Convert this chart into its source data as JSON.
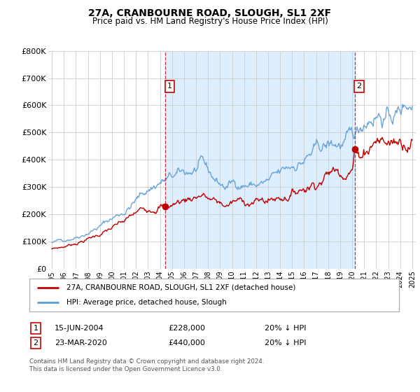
{
  "title": "27A, CRANBOURNE ROAD, SLOUGH, SL1 2XF",
  "subtitle": "Price paid vs. HM Land Registry's House Price Index (HPI)",
  "ylim": [
    0,
    800000
  ],
  "yticks": [
    0,
    100000,
    200000,
    300000,
    400000,
    500000,
    600000,
    700000,
    800000
  ],
  "ytick_labels": [
    "£0",
    "£100K",
    "£200K",
    "£300K",
    "£400K",
    "£500K",
    "£600K",
    "£700K",
    "£800K"
  ],
  "hpi_color": "#5b9bd5",
  "price_color": "#c00000",
  "fill_color": "#ddeeff",
  "marker1_x": 2004.46,
  "marker1_y": 228000,
  "marker2_x": 2020.23,
  "marker2_y": 440000,
  "annotation_box_color": "#cc0000",
  "legend_label_red": "27A, CRANBOURNE ROAD, SLOUGH, SL1 2XF (detached house)",
  "legend_label_blue": "HPI: Average price, detached house, Slough",
  "note1_label": "1",
  "note1_date": "15-JUN-2004",
  "note1_price": "£228,000",
  "note1_hpi": "20% ↓ HPI",
  "note2_label": "2",
  "note2_date": "23-MAR-2020",
  "note2_price": "£440,000",
  "note2_hpi": "20% ↓ HPI",
  "footer": "Contains HM Land Registry data © Crown copyright and database right 2024.\nThis data is licensed under the Open Government Licence v3.0.",
  "background_color": "#ffffff",
  "plot_bg_color": "#ffffff",
  "grid_color": "#cccccc",
  "xlim_left": 1994.7,
  "xlim_right": 2025.3
}
